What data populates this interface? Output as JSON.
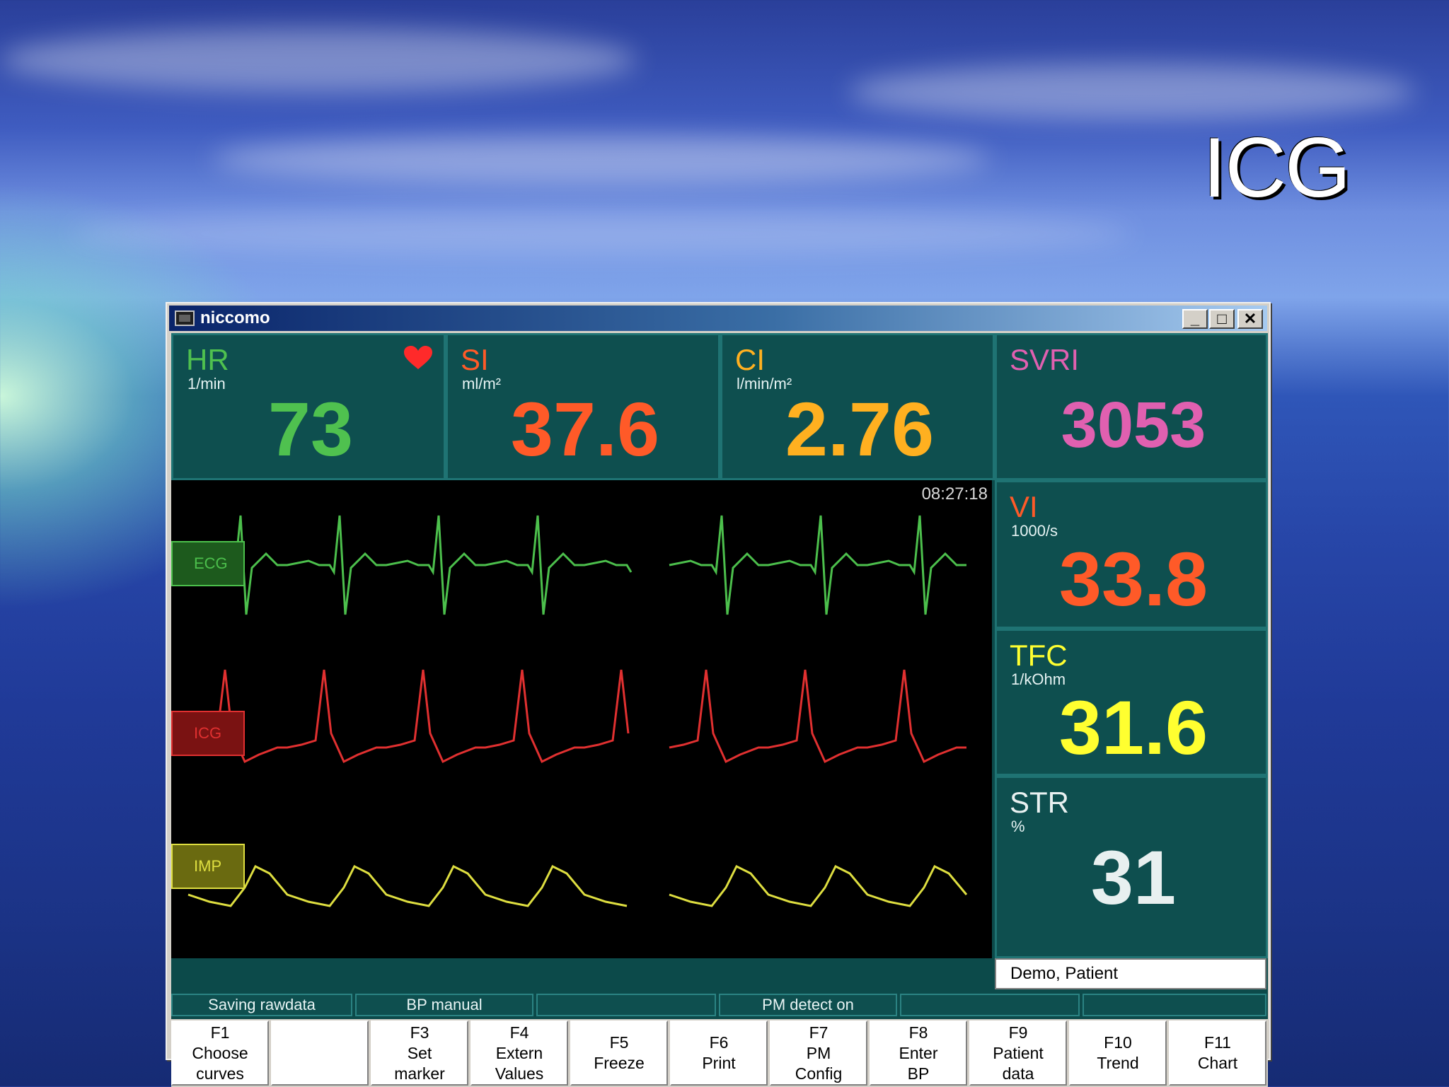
{
  "slide": {
    "title": "ICG"
  },
  "window": {
    "title": "niccomo",
    "minimize": "_",
    "maximize": "□",
    "close": "✕"
  },
  "tiles": {
    "hr": {
      "label": "HR",
      "unit": "1/min",
      "value": "73",
      "color": "#4fc14f"
    },
    "si": {
      "label": "SI",
      "unit": "ml/m²",
      "value": "37.6",
      "color": "#ff5a28"
    },
    "ci": {
      "label": "CI",
      "unit": "l/min/m²",
      "value": "2.76",
      "color": "#ffb020"
    },
    "svri": {
      "label": "SVRI",
      "value": "3053",
      "color": "#e060b0"
    },
    "vi": {
      "label": "VI",
      "unit": "1000/s",
      "value": "33.8",
      "color": "#ff5a28"
    },
    "tfc": {
      "label": "TFC",
      "unit": "1/kOhm",
      "value": "31.6",
      "color": "#ffff30"
    },
    "str": {
      "label": "STR",
      "unit": "%",
      "value": "31",
      "color": "#e8f0f0"
    }
  },
  "waves": {
    "time": "08:27:18",
    "ecg": {
      "label": "ECG",
      "color": "#4cbf4c"
    },
    "icg": {
      "label": "ICG",
      "color": "#e03030"
    },
    "imp": {
      "label": "IMP",
      "color": "#dede40"
    }
  },
  "patient": "Demo, Patient",
  "status": [
    "Saving rawdata",
    "BP manual",
    "",
    "PM detect on",
    "",
    ""
  ],
  "fkeys": [
    {
      "key": "F1",
      "line1": "Choose",
      "line2": "curves"
    },
    {
      "key": "",
      "line1": "",
      "line2": ""
    },
    {
      "key": "F3",
      "line1": "Set",
      "line2": "marker"
    },
    {
      "key": "F4",
      "line1": "Extern",
      "line2": "Values"
    },
    {
      "key": "F5",
      "line1": "Freeze",
      "line2": ""
    },
    {
      "key": "F6",
      "line1": "Print",
      "line2": ""
    },
    {
      "key": "F7",
      "line1": "PM",
      "line2": "Config"
    },
    {
      "key": "F8",
      "line1": "Enter",
      "line2": "BP"
    },
    {
      "key": "F9",
      "line1": "Patient",
      "line2": "data"
    },
    {
      "key": "F10",
      "line1": "Trend",
      "line2": ""
    },
    {
      "key": "F11",
      "line1": "Chart",
      "line2": ""
    }
  ]
}
